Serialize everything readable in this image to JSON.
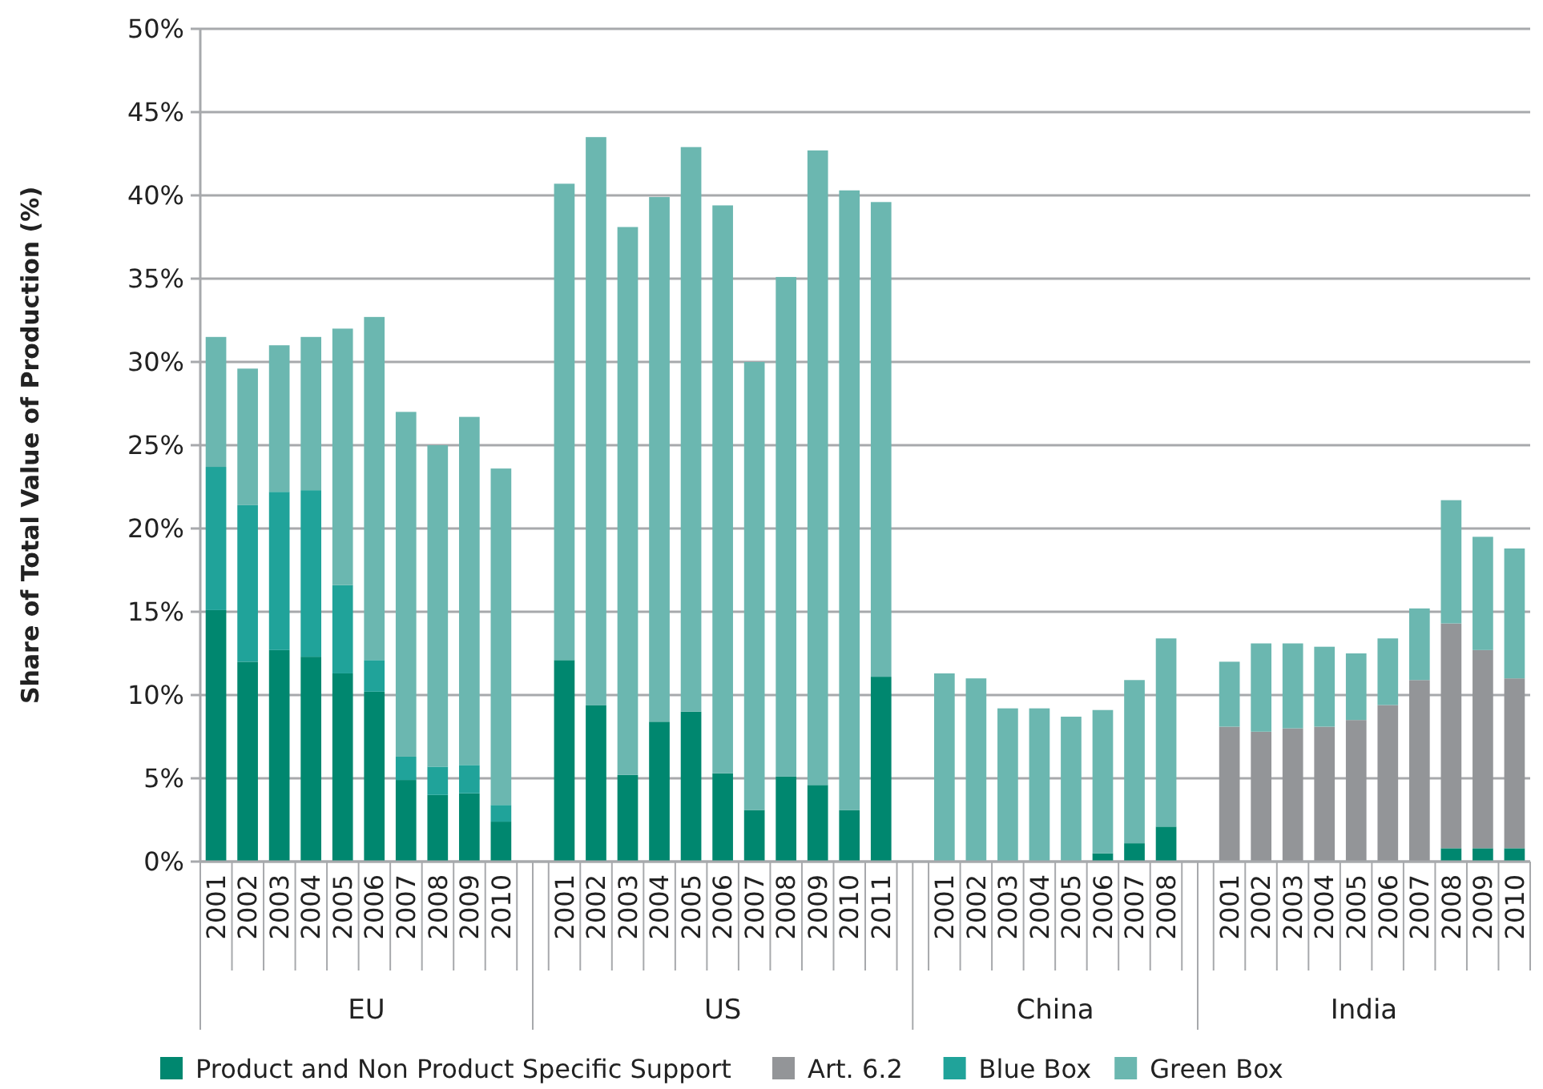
{
  "chart_data": {
    "type": "bar",
    "stacked": true,
    "ylabel": "Share of Total Value of Production (%)",
    "categories": [
      "2001",
      "2002",
      "2003",
      "2004",
      "2005",
      "2006",
      "2007",
      "2008",
      "2009",
      "2010",
      null,
      "2001",
      "2002",
      "2003",
      "2004",
      "2005",
      "2006",
      "2007",
      "2008",
      "2009",
      "2010",
      "2011",
      null,
      "2001",
      "2002",
      "2003",
      "2004",
      "2005",
      "2006",
      "2007",
      "2008",
      null,
      "2001",
      "2002",
      "2003",
      "2004",
      "2005",
      "2006",
      "2007",
      "2008",
      "2009",
      "2010"
    ],
    "annotations": [
      "EU",
      "US",
      "China",
      "India"
    ],
    "series": [
      {
        "name": "Product and Non Product Specific Support",
        "color": "#00876f",
        "values": [
          15.1,
          12.0,
          12.7,
          12.3,
          11.3,
          10.2,
          4.9,
          4.0,
          4.1,
          2.4,
          null,
          12.1,
          9.4,
          5.2,
          8.4,
          9.0,
          5.3,
          3.1,
          5.1,
          4.6,
          3.1,
          11.1,
          null,
          null,
          null,
          null,
          null,
          null,
          0.5,
          1.1,
          2.1,
          null,
          null,
          null,
          null,
          null,
          null,
          null,
          null,
          0.8,
          0.8,
          0.8
        ]
      },
      {
        "name": "Art. 6.2",
        "color": "#939598",
        "values": [
          null,
          null,
          null,
          null,
          null,
          null,
          null,
          null,
          null,
          null,
          null,
          null,
          null,
          null,
          null,
          null,
          null,
          null,
          null,
          null,
          null,
          null,
          null,
          null,
          null,
          null,
          null,
          null,
          null,
          null,
          null,
          null,
          8.1,
          7.8,
          8.0,
          8.1,
          8.5,
          9.4,
          10.9,
          13.5,
          11.9,
          10.2
        ]
      },
      {
        "name": "Blue Box",
        "color": "#20a39a",
        "values": [
          8.6,
          9.4,
          9.5,
          10.0,
          5.3,
          1.9,
          1.4,
          1.7,
          1.7,
          1.0,
          null,
          null,
          null,
          null,
          null,
          null,
          null,
          null,
          null,
          null,
          null,
          null,
          null,
          null,
          null,
          null,
          null,
          null,
          null,
          null,
          null,
          null,
          null,
          null,
          null,
          null,
          null,
          null,
          null,
          null,
          null,
          null
        ]
      },
      {
        "name": "Green Box",
        "color": "#6bb7b0",
        "values": [
          7.8,
          8.2,
          8.8,
          9.2,
          15.4,
          20.6,
          20.7,
          19.3,
          20.9,
          20.2,
          null,
          28.6,
          34.1,
          32.9,
          31.5,
          33.9,
          34.1,
          26.9,
          30.0,
          38.1,
          37.2,
          28.5,
          null,
          11.3,
          11.0,
          9.2,
          9.2,
          8.7,
          8.6,
          9.8,
          11.3,
          null,
          3.9,
          5.3,
          5.1,
          4.8,
          4.0,
          4.0,
          4.3,
          7.4,
          6.8,
          7.8
        ]
      }
    ],
    "ylim": [
      0,
      50
    ],
    "yticks": [
      {
        "value": 0,
        "label": "0%"
      },
      {
        "value": 5,
        "label": "5%"
      },
      {
        "value": 10,
        "label": "10%"
      },
      {
        "value": 15,
        "label": "15%"
      },
      {
        "value": 20,
        "label": "20%"
      },
      {
        "value": 25,
        "label": "25%"
      },
      {
        "value": 30,
        "label": "30%"
      },
      {
        "value": 35,
        "label": "35%"
      },
      {
        "value": 40,
        "label": "40%"
      },
      {
        "value": 45,
        "label": "45%"
      },
      {
        "value": 50,
        "label": "50%"
      }
    ],
    "grid": "y",
    "legend": "bottom"
  }
}
